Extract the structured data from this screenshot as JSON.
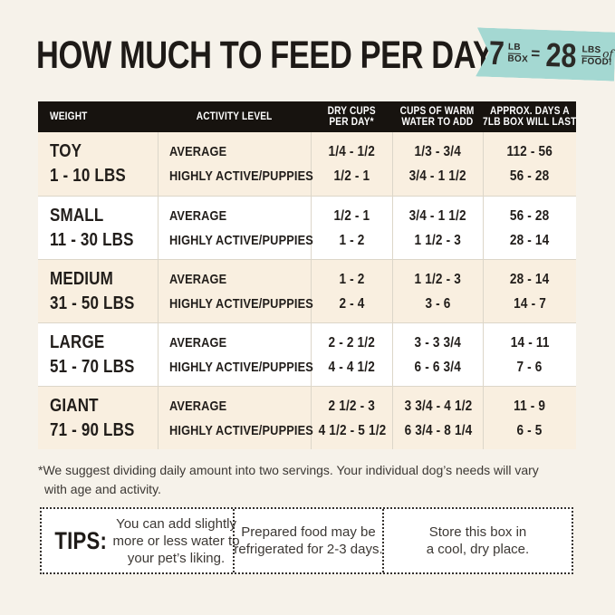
{
  "page": {
    "title": "HOW MUCH TO FEED PER DAY",
    "background_color": "#f6f2ea",
    "text_color": "#211d1a"
  },
  "badge": {
    "left_big": "7",
    "left_top": "LB",
    "left_bottom": "BOX",
    "equals": "=",
    "right_big": "28",
    "right_top": "LBS",
    "right_script": "of",
    "right_bottom": "FOOD!",
    "color": "#a4d8d2"
  },
  "table": {
    "header_bar_color": "#17130f",
    "cream_row_color": "#f9efe0",
    "header": [
      [
        "WEIGHT"
      ],
      [
        "ACTIVITY LEVEL"
      ],
      [
        "DRY CUPS",
        "PER DAY*"
      ],
      [
        "CUPS OF WARM",
        "WATER TO ADD"
      ],
      [
        "APPROX. DAYS A",
        "7LB BOX WILL LAST"
      ]
    ],
    "rows": [
      {
        "size": "TOY",
        "range": "1 - 10 LBS",
        "activity1": "AVERAGE",
        "activity2": "HIGHLY ACTIVE/PUPPIES",
        "dry1": "1/4 - 1/2",
        "dry2": "1/2 - 1",
        "water1": "1/3 - 3/4",
        "water2": "3/4 - 1 1/2",
        "days1": "112 - 56",
        "days2": "56 - 28"
      },
      {
        "size": "SMALL",
        "range": "11 - 30 LBS",
        "activity1": "AVERAGE",
        "activity2": "HIGHLY ACTIVE/PUPPIES",
        "dry1": "1/2 - 1",
        "dry2": "1 - 2",
        "water1": "3/4 - 1 1/2",
        "water2": "1 1/2 - 3",
        "days1": "56 - 28",
        "days2": "28 - 14"
      },
      {
        "size": "MEDIUM",
        "range": "31 - 50 LBS",
        "activity1": "AVERAGE",
        "activity2": "HIGHLY ACTIVE/PUPPIES",
        "dry1": "1 - 2",
        "dry2": "2 - 4",
        "water1": "1 1/2 - 3",
        "water2": "3 - 6",
        "days1": "28 - 14",
        "days2": "14 - 7"
      },
      {
        "size": "LARGE",
        "range": "51 - 70 LBS",
        "activity1": "AVERAGE",
        "activity2": "HIGHLY ACTIVE/PUPPIES",
        "dry1": "2 - 2 1/2",
        "dry2": "4 - 4 1/2",
        "water1": "3 - 3 3/4",
        "water2": "6 - 6 3/4",
        "days1": "14 - 11",
        "days2": "7 - 6"
      },
      {
        "size": "GIANT",
        "range": "71 - 90 LBS",
        "activity1": "AVERAGE",
        "activity2": "HIGHLY ACTIVE/PUPPIES",
        "dry1": "2 1/2 - 3",
        "dry2": "4 1/2 - 5 1/2",
        "water1": "3 3/4 - 4 1/2",
        "water2": "6 3/4 - 8 1/4",
        "days1": "11 - 9",
        "days2": "6 - 5"
      }
    ]
  },
  "footnote": {
    "line1": "*We suggest dividing daily amount into two servings. Your individual dog’s needs will vary",
    "line2": "with age and activity."
  },
  "tips": {
    "label": "TIPS:",
    "items": [
      [
        "You can add slightly",
        "more or less water to",
        "your pet’s liking."
      ],
      [
        "Prepared food may be",
        "refrigerated for 2-3 days."
      ],
      [
        "Store this box in",
        "a cool, dry place."
      ]
    ]
  }
}
